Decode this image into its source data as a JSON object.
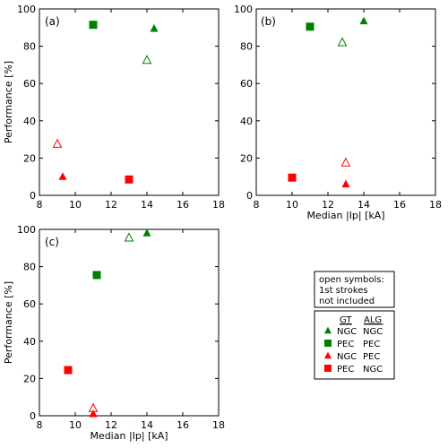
{
  "chart_data": [
    {
      "type": "scatter",
      "panel_label": "(a)",
      "xlabel": "",
      "ylabel": "Performance [%]",
      "xlim": [
        8,
        18
      ],
      "ylim": [
        0,
        100
      ],
      "xticks": [
        "8",
        "10",
        "12",
        "14",
        "16",
        "18"
      ],
      "yticks": [
        "0",
        "20",
        "40",
        "60",
        "80",
        "100"
      ],
      "points": [
        {
          "marker": "square",
          "fill": "filled",
          "color": "#008000",
          "x": 11.0,
          "y": 91.5
        },
        {
          "marker": "triangle",
          "fill": "filled",
          "color": "#008000",
          "x": 14.4,
          "y": 89.5
        },
        {
          "marker": "triangle",
          "fill": "open",
          "color": "#008000",
          "x": 14.0,
          "y": 72.5
        },
        {
          "marker": "triangle",
          "fill": "open",
          "color": "#ff0000",
          "x": 9.0,
          "y": 27.5
        },
        {
          "marker": "triangle",
          "fill": "filled",
          "color": "#ff0000",
          "x": 9.3,
          "y": 10.0
        },
        {
          "marker": "square",
          "fill": "filled",
          "color": "#ff0000",
          "x": 13.0,
          "y": 8.5
        }
      ]
    },
    {
      "type": "scatter",
      "panel_label": "(b)",
      "xlabel": "Median |Ip| [kA]",
      "ylabel": "",
      "xlim": [
        8,
        18
      ],
      "ylim": [
        0,
        100
      ],
      "xticks": [
        "8",
        "10",
        "12",
        "14",
        "16",
        "18"
      ],
      "yticks": [
        "0",
        "20",
        "40",
        "60",
        "80",
        "100"
      ],
      "points": [
        {
          "marker": "triangle",
          "fill": "filled",
          "color": "#008000",
          "x": 14.0,
          "y": 93.5
        },
        {
          "marker": "square",
          "fill": "filled",
          "color": "#008000",
          "x": 11.0,
          "y": 90.5
        },
        {
          "marker": "triangle",
          "fill": "open",
          "color": "#008000",
          "x": 12.8,
          "y": 82.0
        },
        {
          "marker": "triangle",
          "fill": "open",
          "color": "#ff0000",
          "x": 13.0,
          "y": 17.5
        },
        {
          "marker": "square",
          "fill": "filled",
          "color": "#ff0000",
          "x": 10.0,
          "y": 9.5
        },
        {
          "marker": "triangle",
          "fill": "filled",
          "color": "#ff0000",
          "x": 13.0,
          "y": 6.0
        }
      ]
    },
    {
      "type": "scatter",
      "panel_label": "(c)",
      "xlabel": "Median |Ip| [kA]",
      "ylabel": "Performance [%]",
      "xlim": [
        8,
        18
      ],
      "ylim": [
        0,
        100
      ],
      "xticks": [
        "8",
        "10",
        "12",
        "14",
        "16",
        "18"
      ],
      "yticks": [
        "0",
        "20",
        "40",
        "60",
        "80",
        "100"
      ],
      "points": [
        {
          "marker": "triangle",
          "fill": "filled",
          "color": "#008000",
          "x": 14.0,
          "y": 98.0
        },
        {
          "marker": "triangle",
          "fill": "open",
          "color": "#008000",
          "x": 13.0,
          "y": 95.5
        },
        {
          "marker": "square",
          "fill": "filled",
          "color": "#008000",
          "x": 11.2,
          "y": 75.5
        },
        {
          "marker": "square",
          "fill": "filled",
          "color": "#ff0000",
          "x": 9.6,
          "y": 24.5
        },
        {
          "marker": "triangle",
          "fill": "open",
          "color": "#ff0000",
          "x": 11.0,
          "y": 4.0
        },
        {
          "marker": "triangle",
          "fill": "filled",
          "color": "#ff0000",
          "x": 11.0,
          "y": 1.0
        }
      ]
    }
  ],
  "note": {
    "lines": [
      "open symbols:",
      "1st strokes",
      "not included"
    ]
  },
  "legend": {
    "headers": [
      "GT",
      "ALG"
    ],
    "entries": [
      {
        "marker": "triangle",
        "color": "#008000",
        "gt": "NGC",
        "alg": "NGC"
      },
      {
        "marker": "square",
        "color": "#008000",
        "gt": "PEC",
        "alg": "PEC"
      },
      {
        "marker": "triangle",
        "color": "#ff0000",
        "gt": "NGC",
        "alg": "PEC"
      },
      {
        "marker": "square",
        "color": "#ff0000",
        "gt": "PEC",
        "alg": "NGC"
      }
    ]
  }
}
